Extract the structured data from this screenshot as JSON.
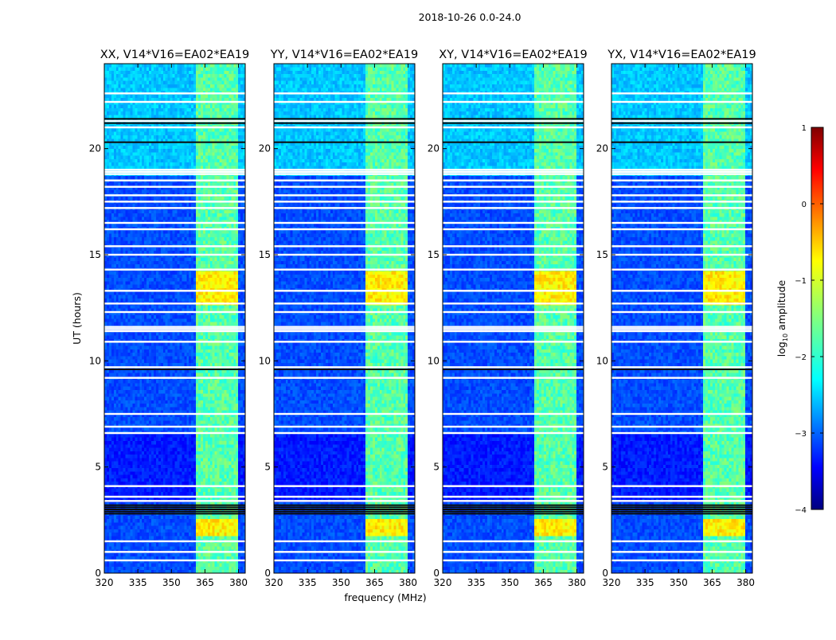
{
  "figure": {
    "suptitle": "2018-10-26 0.0-24.0",
    "ylabel": "UT (hours)",
    "xlabel": "frequency (MHz)"
  },
  "colorbar": {
    "label_base": "log",
    "label_sub": "10",
    "label_rest": " amplitude",
    "ticks": [
      "1",
      "0",
      "−1",
      "−2",
      "−3",
      "−4"
    ],
    "range": [
      -4,
      1
    ],
    "colormap": "jet"
  },
  "chart_data": {
    "type": "heatmap",
    "x_ticks": [
      "320",
      "335",
      "350",
      "365",
      "380"
    ],
    "y_ticks": [
      "0",
      "5",
      "10",
      "15",
      "20"
    ],
    "xlim": [
      320,
      383
    ],
    "ylim": [
      0,
      24
    ],
    "x_tick_values": [
      320,
      335,
      350,
      365,
      380
    ],
    "y_tick_values": [
      0,
      5,
      10,
      15,
      20
    ],
    "panels": [
      {
        "title": "XX, V14*V16=EA02*EA19"
      },
      {
        "title": "YY, V14*V16=EA02*EA19"
      },
      {
        "title": "XY, V14*V16=EA02*EA19"
      },
      {
        "title": "YX, V14*V16=EA02*EA19"
      }
    ],
    "background_level": -3.0,
    "upper_region": {
      "from_hours": 18.8,
      "to_hours": 24.0,
      "level": -2.4
    },
    "rfi_band_mhz": [
      361,
      380
    ],
    "rfi_band_level": -1.7,
    "rfi_peak_periods_hours": [
      [
        12.7,
        14.2
      ],
      [
        1.8,
        2.5
      ]
    ],
    "rfi_peak_level": -0.8,
    "flagged_hours_white": [
      0.6,
      1.0,
      1.5,
      3.4,
      3.6,
      4.1,
      6.6,
      6.9,
      7.5,
      9.2,
      9.7,
      10.9,
      11.4,
      11.5,
      11.6,
      12.3,
      12.7,
      13.3,
      14.3,
      15.0,
      15.4,
      16.2,
      16.5,
      17.2,
      17.5,
      17.8,
      18.2,
      18.5,
      18.8,
      18.9,
      19.0,
      21.0,
      21.3,
      22.2,
      22.6
    ],
    "dark_lines_hours": [
      2.8,
      2.9,
      3.0,
      3.1,
      3.2,
      9.6,
      20.3,
      21.2,
      21.4
    ]
  }
}
